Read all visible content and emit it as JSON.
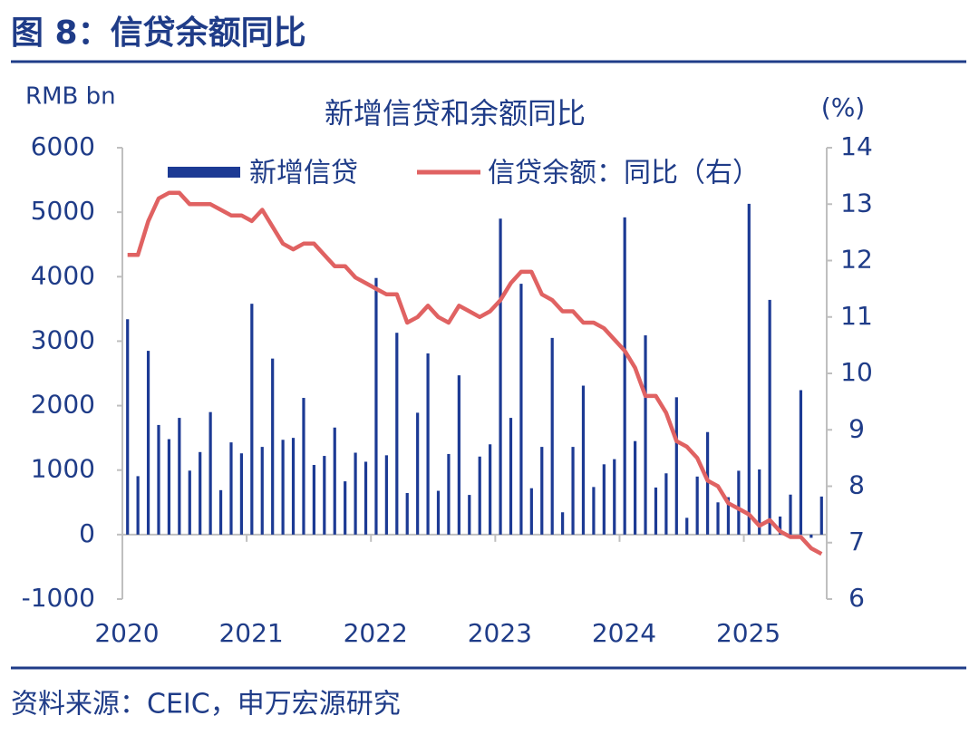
{
  "header": {
    "title": "图 8：信贷余额同比"
  },
  "chart_data": {
    "type": "combo",
    "title": "新增信贷和余额同比",
    "y_label": "RMB bn",
    "y2_label": "(%)",
    "categories": [
      "2020",
      null,
      null,
      null,
      null,
      null,
      null,
      null,
      null,
      null,
      null,
      null,
      "2021",
      null,
      null,
      null,
      null,
      null,
      null,
      null,
      null,
      null,
      null,
      null,
      "2022",
      null,
      null,
      null,
      null,
      null,
      null,
      null,
      null,
      null,
      null,
      null,
      "2023",
      null,
      null,
      null,
      null,
      null,
      null,
      null,
      null,
      null,
      null,
      null,
      "2024",
      null,
      null,
      null,
      null,
      null,
      null,
      null,
      null,
      null,
      null,
      null,
      "2025",
      null,
      null,
      null,
      null,
      null,
      null,
      null
    ],
    "series": [
      {
        "name": "新增信贷",
        "type": "bar",
        "color": "#1c3a94",
        "values": [
          3340,
          906,
          2850,
          1700,
          1480,
          1810,
          992,
          1280,
          1900,
          689,
          1430,
          1260,
          3580,
          1360,
          2730,
          1470,
          1500,
          2120,
          1080,
          1220,
          1660,
          826,
          1270,
          1130,
          3980,
          1230,
          3130,
          645,
          1890,
          2810,
          679,
          1250,
          2470,
          615,
          1210,
          1400,
          4900,
          1810,
          3890,
          719,
          1360,
          3050,
          346,
          1360,
          2310,
          738,
          1090,
          1170,
          4920,
          1450,
          3090,
          730,
          950,
          2130,
          260,
          900,
          1590,
          500,
          580,
          990,
          5130,
          1010,
          3640,
          280,
          620,
          2240,
          -50,
          590
        ]
      },
      {
        "name": "信贷余额：同比（右）",
        "type": "line",
        "axis": "y2",
        "color": "#e06262",
        "values": [
          12.1,
          12.1,
          12.7,
          13.1,
          13.2,
          13.2,
          13.0,
          13.0,
          13.0,
          12.9,
          12.8,
          12.8,
          12.7,
          12.9,
          12.6,
          12.3,
          12.2,
          12.3,
          12.3,
          12.1,
          11.9,
          11.9,
          11.7,
          11.6,
          11.5,
          11.4,
          11.4,
          10.9,
          11.0,
          11.2,
          11.0,
          10.9,
          11.2,
          11.1,
          11.0,
          11.1,
          11.3,
          11.6,
          11.8,
          11.8,
          11.4,
          11.3,
          11.1,
          11.1,
          10.9,
          10.9,
          10.8,
          10.6,
          10.4,
          10.1,
          9.6,
          9.6,
          9.3,
          8.8,
          8.7,
          8.5,
          8.1,
          8.0,
          7.7,
          7.6,
          7.5,
          7.3,
          7.4,
          7.2,
          7.1,
          7.1,
          6.9,
          6.8
        ]
      }
    ],
    "ylim": [
      -1000,
      6000
    ],
    "yticks": [
      -1000,
      0,
      1000,
      2000,
      3000,
      4000,
      5000,
      6000
    ],
    "y2lim": [
      6,
      14
    ],
    "y2ticks": [
      6,
      7,
      8,
      9,
      10,
      11,
      12,
      13,
      14
    ],
    "legend": "top"
  },
  "source": "资料来源：CEIC，申万宏源研究"
}
